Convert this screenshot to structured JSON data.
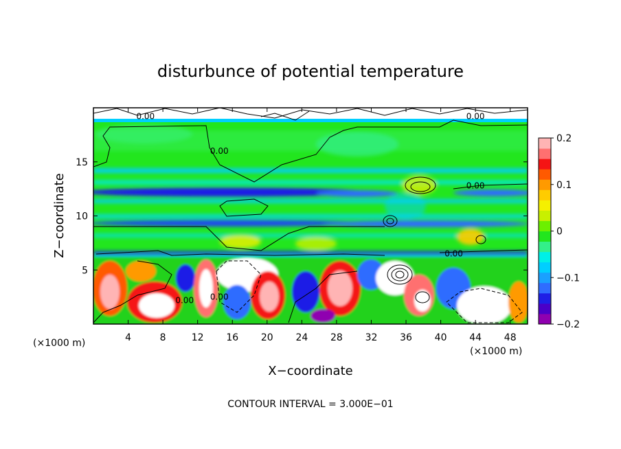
{
  "chart_data": {
    "type": "heatmap",
    "title": "disturbunce of potential temperature",
    "xlabel": "X−coordinate",
    "ylabel": "Z−coordinate",
    "x_unit_left": "(×1000 m)",
    "x_unit_right": "(×1000 m)",
    "xlim": [
      0,
      50
    ],
    "ylim": [
      0,
      20
    ],
    "x_ticks": [
      4,
      8,
      12,
      16,
      20,
      24,
      28,
      32,
      36,
      40,
      44,
      48
    ],
    "y_ticks": [
      5,
      10,
      15
    ],
    "colorbar": {
      "range": [
        -0.2,
        0.2
      ],
      "ticks": [
        {
          "value": 0.2,
          "label": "0.2"
        },
        {
          "value": 0.1,
          "label": "0.1"
        },
        {
          "value": 0,
          "label": "0"
        },
        {
          "value": -0.1,
          "label": "−0.1"
        },
        {
          "value": -0.2,
          "label": "−0.2"
        }
      ],
      "colors": [
        "#8f00b0",
        "#4b00c8",
        "#1f1fe6",
        "#2f6cff",
        "#1aa0ff",
        "#00cfff",
        "#00f0e6",
        "#33f08a",
        "#22e61e",
        "#6cf000",
        "#c8f000",
        "#f5f000",
        "#ffcc00",
        "#ff9a00",
        "#ff5a00",
        "#f51414",
        "#ff7070",
        "#ffb4b4"
      ]
    },
    "contour_labels": [
      {
        "x": 6,
        "y": 19.2,
        "text": "0.00"
      },
      {
        "x": 44,
        "y": 19.2,
        "text": "0.00"
      },
      {
        "x": 14.5,
        "y": 16,
        "text": "0.00"
      },
      {
        "x": 44,
        "y": 12.8,
        "text": "0.00"
      },
      {
        "x": 41.5,
        "y": 6.5,
        "text": "0.00"
      },
      {
        "x": 10.5,
        "y": 2.2,
        "text": "0.00"
      },
      {
        "x": 14.5,
        "y": 2.5,
        "text": "0.00"
      }
    ],
    "footer": "CONTOUR INTERVAL = 3.000E−01",
    "grid": false
  }
}
